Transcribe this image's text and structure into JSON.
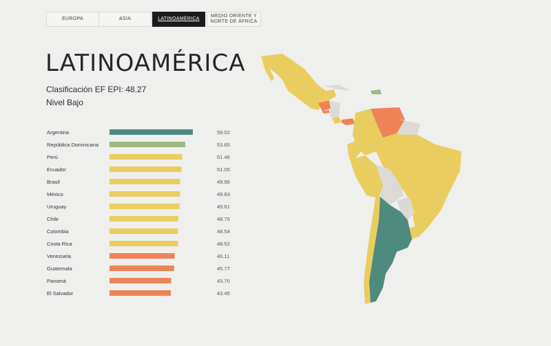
{
  "tabs": [
    "EUROPA",
    "ASIA",
    "LATINOAMÉRICA",
    "MEDIO ORIENTE Y\nNORTE DE ÁFRICA"
  ],
  "active_tab": 2,
  "page_title": "LATINOAMÉRICA",
  "score_text": "Clasificación EF EPI: 48.27",
  "level_text": "Nivel Bajo",
  "colors": {
    "very_high": "#4f8a7e",
    "high": "#9cb883",
    "moderate": "#e9cd5e",
    "low": "#ef8355",
    "no_data": "#dcdad5"
  },
  "chart_data": {
    "type": "bar",
    "orientation": "horizontal",
    "categories": [
      "Argentina",
      "República Dominicana",
      "Perú",
      "Ecuador",
      "Brasil",
      "México",
      "Uruguay",
      "Chile",
      "Colombia",
      "Costa Rica",
      "Venezuela",
      "Guatemala",
      "Panamá",
      "El Salvador"
    ],
    "values": [
      59.02,
      53.65,
      51.46,
      51.05,
      49.96,
      49.83,
      49.61,
      48.75,
      48.54,
      48.52,
      46.11,
      45.77,
      43.7,
      43.45
    ],
    "labels": [
      "59.02",
      "53.65",
      "51.46",
      "51.05",
      "49.96",
      "49.83",
      "49.61",
      "48.75",
      "48.54",
      "48.52",
      "46.11",
      "45.77",
      "43.70",
      "43.45"
    ],
    "bar_colors": [
      "#4f8a7e",
      "#9cb883",
      "#e9cd5e",
      "#e9cd5e",
      "#e9cd5e",
      "#e9cd5e",
      "#e9cd5e",
      "#e9cd5e",
      "#e9cd5e",
      "#e9cd5e",
      "#ef8355",
      "#ef8355",
      "#ef8355",
      "#ef8355"
    ],
    "xlim": [
      0,
      61
    ],
    "title": "",
    "xlabel": "",
    "ylabel": "",
    "grid": false
  }
}
